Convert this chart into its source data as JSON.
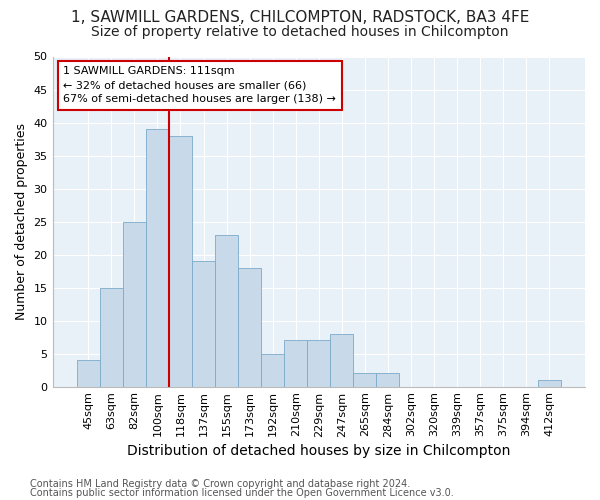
{
  "title_line1": "1, SAWMILL GARDENS, CHILCOMPTON, RADSTOCK, BA3 4FE",
  "title_line2": "Size of property relative to detached houses in Chilcompton",
  "xlabel": "Distribution of detached houses by size in Chilcompton",
  "ylabel": "Number of detached properties",
  "bar_labels": [
    "45sqm",
    "63sqm",
    "82sqm",
    "100sqm",
    "118sqm",
    "137sqm",
    "155sqm",
    "173sqm",
    "192sqm",
    "210sqm",
    "229sqm",
    "247sqm",
    "265sqm",
    "284sqm",
    "302sqm",
    "320sqm",
    "339sqm",
    "357sqm",
    "375sqm",
    "394sqm",
    "412sqm"
  ],
  "bar_values": [
    4,
    15,
    25,
    39,
    38,
    19,
    23,
    18,
    5,
    7,
    7,
    8,
    2,
    2,
    0,
    0,
    0,
    0,
    0,
    0,
    1
  ],
  "bar_color": "#c8daea",
  "bar_edgecolor": "#7aaac8",
  "vline_color": "#cc0000",
  "annotation_text": "1 SAWMILL GARDENS: 111sqm\n← 32% of detached houses are smaller (66)\n67% of semi-detached houses are larger (138) →",
  "annotation_box_facecolor": "#ffffff",
  "annotation_box_edgecolor": "#cc0000",
  "footer_line1": "Contains HM Land Registry data © Crown copyright and database right 2024.",
  "footer_line2": "Contains public sector information licensed under the Open Government Licence v3.0.",
  "background_color": "#ffffff",
  "plot_bg_color": "#e8f0f8",
  "grid_color": "#ffffff",
  "ylim": [
    0,
    50
  ],
  "yticks": [
    0,
    5,
    10,
    15,
    20,
    25,
    30,
    35,
    40,
    45,
    50
  ],
  "title1_fontsize": 11,
  "title2_fontsize": 10,
  "xlabel_fontsize": 10,
  "ylabel_fontsize": 9,
  "tick_fontsize": 8,
  "annot_fontsize": 8,
  "footer_fontsize": 7
}
